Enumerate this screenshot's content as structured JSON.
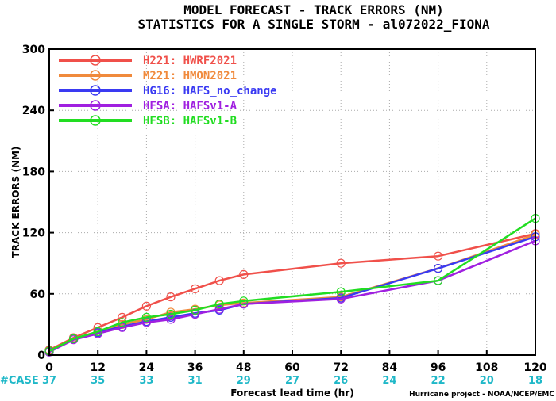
{
  "chart_data": {
    "type": "line",
    "title": "MODEL FORECAST - TRACK ERRORS (NM)",
    "subtitle": "STATISTICS FOR A SINGLE STORM - al072022_FIONA",
    "xlabel": "Forecast lead time (hr)",
    "ylabel": "TRACK ERRORS (NM)",
    "xlim": [
      0,
      120
    ],
    "ylim": [
      0,
      300
    ],
    "x_ticks": [
      0,
      12,
      24,
      36,
      48,
      60,
      72,
      84,
      96,
      108,
      120
    ],
    "y_ticks": [
      0,
      60,
      120,
      180,
      240,
      300
    ],
    "y_tick_labels": [
      "0",
      "60",
      "120",
      "180",
      "240",
      "300"
    ],
    "grid": true,
    "legend_position": "top-left",
    "case_label": "#CASE",
    "case_counts": [
      {
        "x": 0,
        "n": "37"
      },
      {
        "x": 12,
        "n": "35"
      },
      {
        "x": 24,
        "n": "33"
      },
      {
        "x": 36,
        "n": "31"
      },
      {
        "x": 48,
        "n": "29"
      },
      {
        "x": 60,
        "n": "27"
      },
      {
        "x": 72,
        "n": "26"
      },
      {
        "x": 84,
        "n": "24"
      },
      {
        "x": 96,
        "n": "22"
      },
      {
        "x": 108,
        "n": "20"
      },
      {
        "x": 120,
        "n": "18"
      }
    ],
    "series": [
      {
        "name": "H221: HWRF2021",
        "color": "#f0504a",
        "x": [
          0,
          6,
          12,
          18,
          24,
          30,
          36,
          42,
          48,
          72,
          96,
          120
        ],
        "y": [
          5,
          17,
          27,
          37,
          48,
          57,
          65,
          73,
          79,
          90,
          97,
          119
        ]
      },
      {
        "name": "M221: HMON2021",
        "color": "#f08a3c",
        "x": [
          0,
          6,
          12,
          18,
          24,
          30,
          36,
          42,
          48,
          72,
          96,
          120
        ],
        "y": [
          3,
          16,
          23,
          30,
          35,
          42,
          45,
          49,
          51,
          57,
          85,
          118
        ]
      },
      {
        "name": "HG16: HAFS_no_change",
        "color": "#3a3af2",
        "x": [
          0,
          6,
          12,
          18,
          24,
          30,
          36,
          42,
          48,
          72,
          96,
          120
        ],
        "y": [
          3,
          16,
          22,
          28,
          33,
          37,
          41,
          44,
          50,
          56,
          85,
          116
        ]
      },
      {
        "name": "HFSA: HAFSv1-A",
        "color": "#a020e0",
        "x": [
          0,
          6,
          12,
          18,
          24,
          30,
          36,
          42,
          48,
          72,
          96,
          120
        ],
        "y": [
          3,
          15,
          21,
          27,
          32,
          35,
          40,
          45,
          50,
          55,
          73,
          112
        ]
      },
      {
        "name": "HFSB: HAFSv1-B",
        "color": "#22dd22",
        "x": [
          0,
          6,
          12,
          18,
          24,
          30,
          36,
          42,
          48,
          72,
          96,
          120
        ],
        "y": [
          4,
          16,
          23,
          32,
          37,
          40,
          44,
          50,
          53,
          62,
          73,
          134
        ]
      }
    ]
  },
  "credit": "Hurricane project - NOAA/NCEP/EMC"
}
